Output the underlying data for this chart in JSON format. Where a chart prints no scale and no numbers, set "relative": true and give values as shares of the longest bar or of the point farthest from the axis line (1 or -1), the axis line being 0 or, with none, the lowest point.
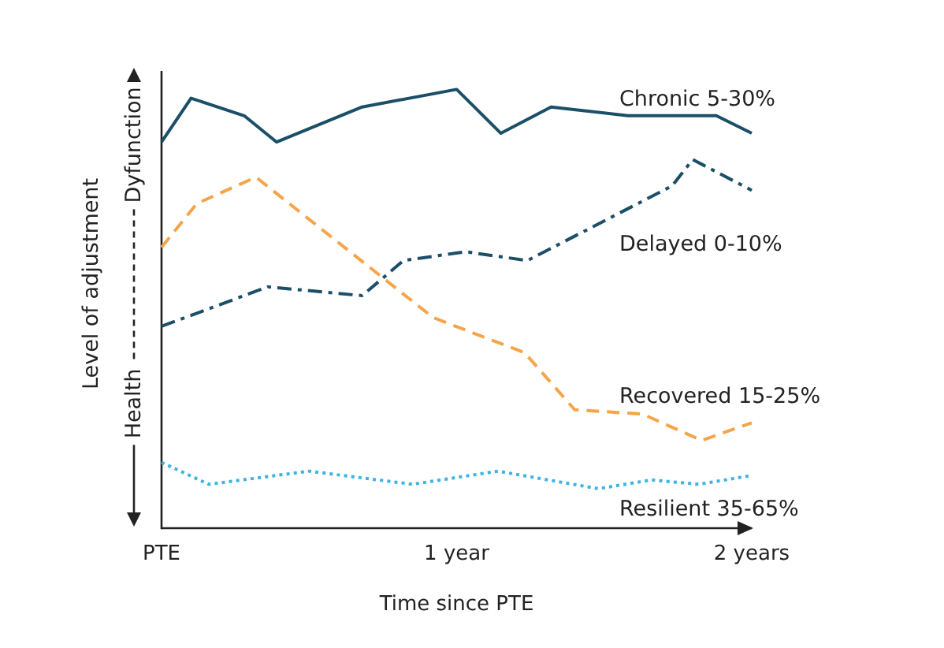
{
  "chart_data": {
    "type": "line",
    "xlabel": "Time since PTE",
    "ylabel": "Level of adjustment",
    "annotations": [
      "Health",
      "Dyfunction"
    ],
    "relative": true,
    "xlim": [
      0,
      2
    ],
    "xticks": [
      {
        "value": 0,
        "label": "PTE"
      },
      {
        "value": 1,
        "label": "1 year"
      },
      {
        "value": 2,
        "label": "2 years"
      }
    ],
    "legend": false,
    "marker": "none",
    "series": [
      {
        "name": "Chronic 5-30%",
        "color": "#1b4f68",
        "line_style": "solid",
        "x": [
          0,
          0.1,
          0.28,
          0.39,
          0.68,
          1,
          1.15,
          1.32,
          1.58,
          1.88,
          2
        ],
        "values": [
          0.88,
          0.98,
          0.94,
          0.88,
          0.96,
          1,
          0.9,
          0.96,
          0.94,
          0.94,
          0.9
        ]
      },
      {
        "name": "Delayed 0-10%",
        "color": "#1b4f68",
        "line_style": "dashdot",
        "x": [
          0,
          0.36,
          0.68,
          0.82,
          1.03,
          1.24,
          1.73,
          1.8,
          2
        ],
        "values": [
          0.46,
          0.55,
          0.53,
          0.61,
          0.63,
          0.61,
          0.78,
          0.84,
          0.77
        ]
      },
      {
        "name": "Recovered 15-25%",
        "color": "#f4a549",
        "line_style": "dashed",
        "x": [
          0,
          0.12,
          0.32,
          0.92,
          1.23,
          1.4,
          1.63,
          1.83,
          2
        ],
        "values": [
          0.64,
          0.74,
          0.8,
          0.48,
          0.4,
          0.27,
          0.26,
          0.2,
          0.24
        ]
      },
      {
        "name": "Resilient 35-65%",
        "color": "#3db3e3",
        "line_style": "dotted",
        "x": [
          0,
          0.16,
          0.5,
          0.85,
          1.14,
          1.48,
          1.66,
          1.82,
          2
        ],
        "values": [
          0.15,
          0.1,
          0.13,
          0.1,
          0.13,
          0.09,
          0.11,
          0.1,
          0.12
        ]
      }
    ]
  }
}
